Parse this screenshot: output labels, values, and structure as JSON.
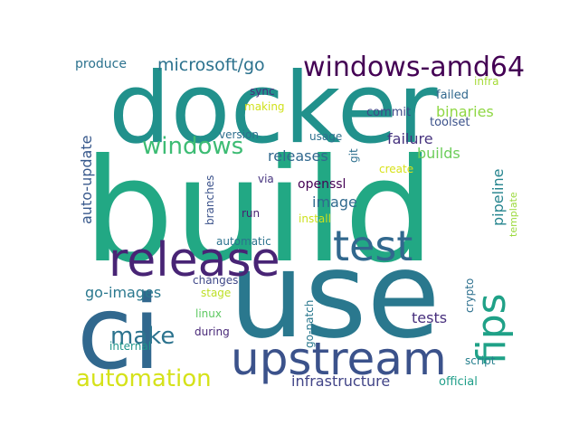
{
  "word_cloud": {
    "words": [
      {
        "text": "build",
        "color": "#22a884"
      },
      {
        "text": "use",
        "color": "#2a788e"
      },
      {
        "text": "docker",
        "color": "#21918c"
      },
      {
        "text": "ci",
        "color": "#31688e"
      },
      {
        "text": "release",
        "color": "#482475"
      },
      {
        "text": "upstream",
        "color": "#3b528b"
      },
      {
        "text": "test",
        "color": "#31688e"
      },
      {
        "text": "fips",
        "color": "#1fa187"
      },
      {
        "text": "windows-amd64",
        "color": "#440154"
      },
      {
        "text": "windows",
        "color": "#3dbc74"
      },
      {
        "text": "make",
        "color": "#2c738e"
      },
      {
        "text": "automation",
        "color": "#d5e21a"
      },
      {
        "text": "microsoft/go",
        "color": "#2c728e"
      },
      {
        "text": "auto-update",
        "color": "#38598c"
      },
      {
        "text": "go-images",
        "color": "#2a788e"
      },
      {
        "text": "infrastructure",
        "color": "#414487"
      },
      {
        "text": "binaries",
        "color": "#8fd744"
      },
      {
        "text": "failure",
        "color": "#46327e"
      },
      {
        "text": "builds",
        "color": "#6ccd5a"
      },
      {
        "text": "releases",
        "color": "#31688e"
      },
      {
        "text": "image",
        "color": "#306a8e"
      },
      {
        "text": "pipeline",
        "color": "#25848e"
      },
      {
        "text": "tests",
        "color": "#472f7d"
      },
      {
        "text": "produce",
        "color": "#2c728e"
      },
      {
        "text": "failed",
        "color": "#31688e"
      },
      {
        "text": "toolset",
        "color": "#3b528b"
      },
      {
        "text": "commit",
        "color": "#3e4a89"
      },
      {
        "text": "infra",
        "color": "#a5db36"
      },
      {
        "text": "sync",
        "color": "#46307e"
      },
      {
        "text": "making",
        "color": "#d0e11c"
      },
      {
        "text": "version",
        "color": "#2e6f8e"
      },
      {
        "text": "usage",
        "color": "#2d708e"
      },
      {
        "text": "git",
        "color": "#2d708e"
      },
      {
        "text": "create",
        "color": "#d8e219"
      },
      {
        "text": "openssl",
        "color": "#440154"
      },
      {
        "text": "via",
        "color": "#46337f"
      },
      {
        "text": "branches",
        "color": "#3b528b"
      },
      {
        "text": "run",
        "color": "#482071"
      },
      {
        "text": "install",
        "color": "#cde11d"
      },
      {
        "text": "automatic",
        "color": "#2c738e"
      },
      {
        "text": "changes",
        "color": "#3f4889"
      },
      {
        "text": "stage",
        "color": "#bddf26"
      },
      {
        "text": "linux",
        "color": "#5ec962"
      },
      {
        "text": "during",
        "color": "#482878"
      },
      {
        "text": "go-patch",
        "color": "#2a788e"
      },
      {
        "text": "crypto",
        "color": "#2d708e"
      },
      {
        "text": "internal",
        "color": "#1f958b"
      },
      {
        "text": "template",
        "color": "#9bd93c"
      },
      {
        "text": "script",
        "color": "#27808e"
      },
      {
        "text": "official",
        "color": "#1f9e89"
      }
    ]
  }
}
